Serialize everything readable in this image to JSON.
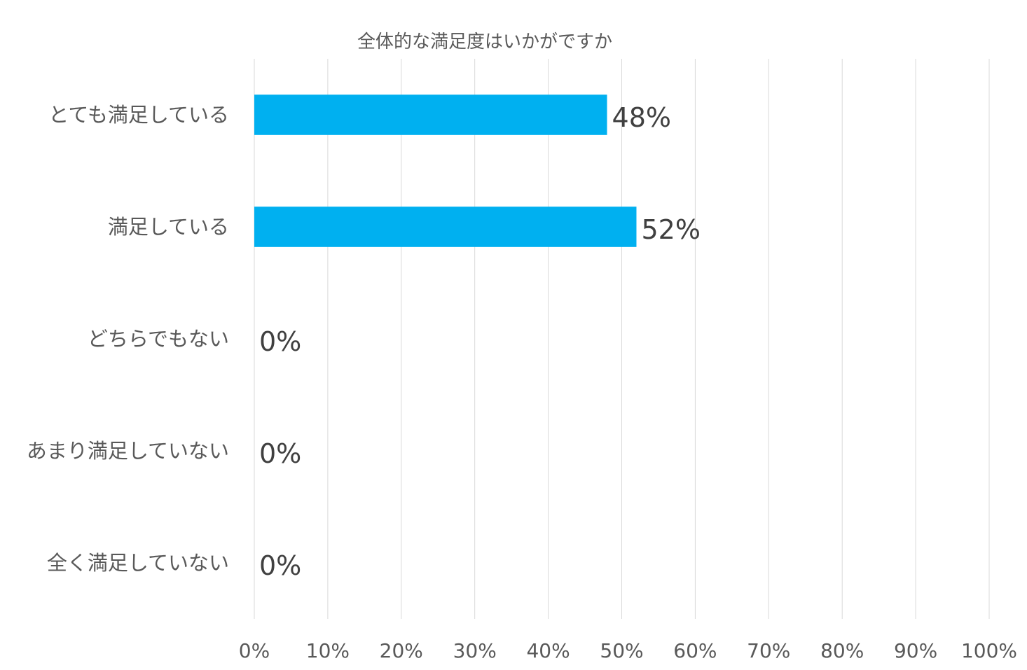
{
  "chart_data": {
    "type": "bar",
    "orientation": "horizontal",
    "title": "全体的な満足度はいかがですか",
    "categories": [
      "とても満足している",
      "満足している",
      "どちらでもない",
      "あまり満足していない",
      "全く満足していない"
    ],
    "values": [
      48,
      52,
      0,
      0,
      0
    ],
    "data_labels": [
      "48%",
      "52%",
      "0%",
      "0%",
      "0%"
    ],
    "xlim": [
      0,
      100
    ],
    "x_ticks": [
      "0%",
      "10%",
      "20%",
      "30%",
      "40%",
      "50%",
      "60%",
      "70%",
      "80%",
      "90%",
      "100%"
    ],
    "xlabel": "",
    "ylabel": "",
    "grid": "vertical",
    "legend": "none",
    "bar_color": "#00B0F0"
  }
}
